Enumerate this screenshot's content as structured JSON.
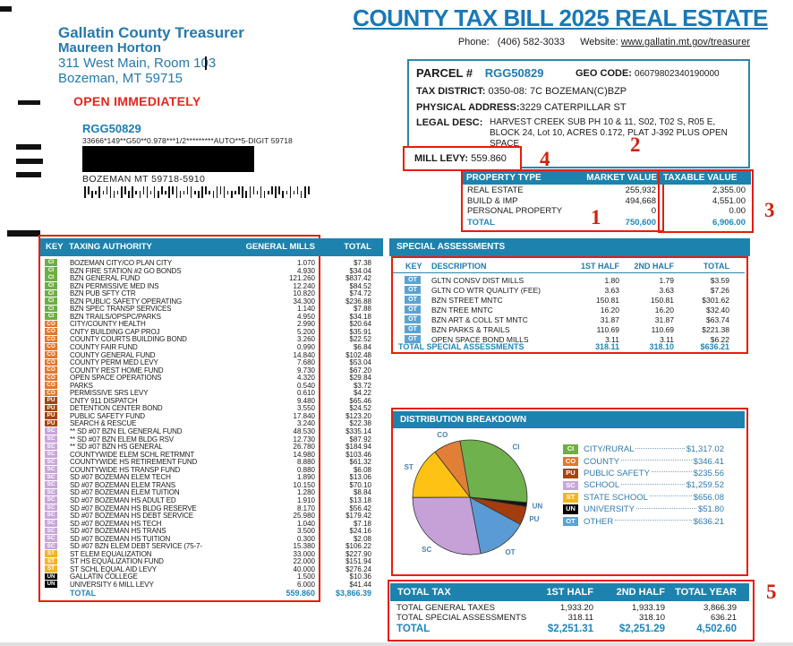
{
  "header": {
    "title": "COUNTY TAX BILL 2025 REAL ESTATE",
    "phone_label": "Phone:",
    "phone": "(406) 582-3033",
    "website_label": "Website:",
    "website": "www.gallatin.mt.gov/treasurer"
  },
  "sender": {
    "office": "Gallatin County Treasurer",
    "name": "Maureen Horton",
    "address1": "311 West Main, Room 103",
    "address2": "Bozeman, MT 59715"
  },
  "mailing": {
    "open_immediately": "OPEN IMMEDIATELY",
    "parcel_ref": "RGG50829",
    "mail_code": "33666*149**G50**0.978***1/2*********AUTO**5-DIGIT 59718",
    "city_line": "BOZEMAN MT 59718-5910"
  },
  "parcel": {
    "parcel_label": "PARCEL #",
    "parcel_id": "RGG50829",
    "geo_code_label": "GEO CODE:",
    "geo_code": "06079802340190000",
    "tax_district_label": "TAX DISTRICT:",
    "tax_district": "0350-08: 7C BOZEMAN(C)BZP",
    "physical_address_label": "PHYSICAL ADDRESS:",
    "physical_address": "3229 CATERPILLAR ST",
    "legal_desc_label": "LEGAL DESC:",
    "legal_desc": "HARVEST CREEK SUB PH 10 & 11, S02, T02 S, R05 E, BLOCK 24, Lot 10, ACRES 0.172, PLAT J-392 PLUS OPEN SPACE",
    "mill_levy_label": "MILL LEVY:",
    "mill_levy": "559.860"
  },
  "annotations": {
    "one": "1",
    "two": "2",
    "three": "3",
    "four": "4",
    "five": "5"
  },
  "key_colors": {
    "CI": "#6fae43",
    "CO": "#e4772a",
    "PU": "#a64510",
    "SC": "#c9a6db",
    "ST": "#f6b51c",
    "UN": "#000000",
    "OT": "#5ba3d4"
  },
  "property_values": {
    "headers": [
      "PROPERTY TYPE",
      "MARKET VALUE",
      "TAXABLE VALUE"
    ],
    "rows": [
      {
        "type": "REAL ESTATE",
        "market": "255,932",
        "taxable": "2,355.00"
      },
      {
        "type": "BUILD & IMP",
        "market": "494,668",
        "taxable": "4,551.00"
      },
      {
        "type": "PERSONAL PROPERTY",
        "market": "0",
        "taxable": "0.00"
      }
    ],
    "total_label": "TOTAL",
    "total_market": "750,600",
    "total_taxable": "6,906.00"
  },
  "taxing_authority": {
    "col_key": "KEY",
    "col_authority": "TAXING AUTHORITY",
    "col_mills": "GENERAL MILLS",
    "col_total": "TOTAL",
    "rows": [
      {
        "key": "CI",
        "name": "BOZEMAN CITY/CO PLAN CITY",
        "mills": "1.070",
        "total": "$7.38"
      },
      {
        "key": "CI",
        "name": "BZN FIRE STATION #2 GO BONDS",
        "mills": "4.930",
        "total": "$34.04"
      },
      {
        "key": "CI",
        "name": "BZN GENERAL FUND",
        "mills": "121.260",
        "total": "$837.42"
      },
      {
        "key": "CI",
        "name": "BZN PERMISSIVE MED INS",
        "mills": "12.240",
        "total": "$84.52"
      },
      {
        "key": "CI",
        "name": "BZN PUB SFTY CTR",
        "mills": "10.820",
        "total": "$74.72"
      },
      {
        "key": "CI",
        "name": "BZN PUBLIC SAFETY OPERATING",
        "mills": "34.300",
        "total": "$236.88"
      },
      {
        "key": "CI",
        "name": "BZN SPEC TRANSP SERVICES",
        "mills": "1.140",
        "total": "$7.88"
      },
      {
        "key": "CI",
        "name": "BZN TRAILS/OPSPC/PARKS",
        "mills": "4.950",
        "total": "$34.18"
      },
      {
        "key": "CO",
        "name": "CITY/COUNTY HEALTH",
        "mills": "2.990",
        "total": "$20.64"
      },
      {
        "key": "CO",
        "name": "CNTY BUILDING CAP PROJ",
        "mills": "5.200",
        "total": "$35.91"
      },
      {
        "key": "CO",
        "name": "COUNTY COURTS BUILDING BOND",
        "mills": "3.260",
        "total": "$22.52"
      },
      {
        "key": "CO",
        "name": "COUNTY FAIR FUND",
        "mills": "0.990",
        "total": "$6.84"
      },
      {
        "key": "CO",
        "name": "COUNTY GENERAL FUND",
        "mills": "14.840",
        "total": "$102.48"
      },
      {
        "key": "CO",
        "name": "COUNTY PERM MED LEVY",
        "mills": "7.680",
        "total": "$53.04"
      },
      {
        "key": "CO",
        "name": "COUNTY REST HOME FUND",
        "mills": "9.730",
        "total": "$67.20"
      },
      {
        "key": "CO",
        "name": "OPEN SPACE OPERATIONS",
        "mills": "4.320",
        "total": "$29.84"
      },
      {
        "key": "CO",
        "name": "PARKS",
        "mills": "0.540",
        "total": "$3.72"
      },
      {
        "key": "CO",
        "name": "PERMISSIVE SRS LEVY",
        "mills": "0.610",
        "total": "$4.22"
      },
      {
        "key": "PU",
        "name": "CNTY 911 DISPATCH",
        "mills": "9.480",
        "total": "$65.46"
      },
      {
        "key": "PU",
        "name": "DETENTION CENTER BOND",
        "mills": "3.550",
        "total": "$24.52"
      },
      {
        "key": "PU",
        "name": "PUBLIC SAFETY FUND",
        "mills": "17.840",
        "total": "$123.20"
      },
      {
        "key": "PU",
        "name": "SEARCH & RESCUE",
        "mills": "3.240",
        "total": "$22.38"
      },
      {
        "key": "SC",
        "name": "** SD #07 BZN EL GENERAL FUND",
        "mills": "48.530",
        "total": "$335.14"
      },
      {
        "key": "SC",
        "name": "** SD #07 BZN ELEM BLDG RSV",
        "mills": "12.730",
        "total": "$87.92"
      },
      {
        "key": "SC",
        "name": "** SD #07 BZN HS GENERAL",
        "mills": "26.780",
        "total": "$184.94"
      },
      {
        "key": "SC",
        "name": "COUNTYWIDE ELEM SCHL RETRMNT",
        "mills": "14.980",
        "total": "$103.46"
      },
      {
        "key": "SC",
        "name": "COUNTYWIDE HS RETIREMENT FUND",
        "mills": "8.880",
        "total": "$61.32"
      },
      {
        "key": "SC",
        "name": "COUNTYWIDE HS TRANSP FUND",
        "mills": "0.880",
        "total": "$6.08"
      },
      {
        "key": "SC",
        "name": "SD #07 BOZEMAN ELEM TECH",
        "mills": "1.890",
        "total": "$13.06"
      },
      {
        "key": "SC",
        "name": "SD #07 BOZEMAN ELEM TRANS",
        "mills": "10.150",
        "total": "$70.10"
      },
      {
        "key": "SC",
        "name": "SD #07 BOZEMAN ELEM TUITION",
        "mills": "1.280",
        "total": "$8.84"
      },
      {
        "key": "SC",
        "name": "SD #07 BOZEMAN HS ADULT ED",
        "mills": "1.910",
        "total": "$13.18"
      },
      {
        "key": "SC",
        "name": "SD #07 BOZEMAN HS BLDG RESERVE",
        "mills": "8.170",
        "total": "$56.42"
      },
      {
        "key": "SC",
        "name": "SD #07 BOZEMAN HS DEBT SERVICE",
        "mills": "25.980",
        "total": "$179.42"
      },
      {
        "key": "SC",
        "name": "SD #07 BOZEMAN HS TECH",
        "mills": "1.040",
        "total": "$7.18"
      },
      {
        "key": "SC",
        "name": "SD #07 BOZEMAN HS TRANS",
        "mills": "3.500",
        "total": "$24.16"
      },
      {
        "key": "SC",
        "name": "SD #07 BOZEMAN HS TUITION",
        "mills": "0.300",
        "total": "$2.08"
      },
      {
        "key": "SC",
        "name": "SD #07 BZN ELEM DEBT SERVICE (75-7-",
        "mills": "15.380",
        "total": "$106.22"
      },
      {
        "key": "ST",
        "name": "ST ELEM EQUALIZATION",
        "mills": "33.000",
        "total": "$227.90"
      },
      {
        "key": "ST",
        "name": "ST HS EQUALIZATION FUND",
        "mills": "22.000",
        "total": "$151.94"
      },
      {
        "key": "ST",
        "name": "ST SCHL EQUAL AID LEVY",
        "mills": "40.000",
        "total": "$276.24"
      },
      {
        "key": "UN",
        "name": "GALLATIN COLLEGE",
        "mills": "1.500",
        "total": "$10.36"
      },
      {
        "key": "UN",
        "name": "UNIVERSITY 6 MILL LEVY",
        "mills": "6.000",
        "total": "$41.44"
      }
    ],
    "total_label": "TOTAL",
    "total_mills": "559.860",
    "total_amount": "$3,866.39"
  },
  "special_assessments": {
    "title": "SPECIAL ASSESSMENTS",
    "col_key": "KEY",
    "col_desc": "DESCRIPTION",
    "col_first": "1ST HALF",
    "col_second": "2ND HALF",
    "col_total": "TOTAL",
    "rows": [
      {
        "key": "OT",
        "desc": "GLTN CONSV DIST MILLS",
        "first": "1.80",
        "second": "1.79",
        "total": "$3.59"
      },
      {
        "key": "OT",
        "desc": "GLTN CO WTR QUALITY (FEE)",
        "first": "3.63",
        "second": "3.63",
        "total": "$7.26"
      },
      {
        "key": "OT",
        "desc": "BZN STREET MNTC",
        "first": "150.81",
        "second": "150.81",
        "total": "$301.62"
      },
      {
        "key": "OT",
        "desc": "BZN TREE MNTC",
        "first": "16.20",
        "second": "16.20",
        "total": "$32.40"
      },
      {
        "key": "OT",
        "desc": "BZN ART & COLL ST MNTC",
        "first": "31.87",
        "second": "31.87",
        "total": "$63.74"
      },
      {
        "key": "OT",
        "desc": "BZN PARKS & TRAILS",
        "first": "110.69",
        "second": "110.69",
        "total": "$221.38"
      },
      {
        "key": "OT",
        "desc": "OPEN SPACE BOND MILLS",
        "first": "3.11",
        "second": "3.11",
        "total": "$6.22"
      }
    ],
    "total_label": "TOTAL SPECIAL ASSESSMENTS",
    "total_first": "318.11",
    "total_second": "318.10",
    "total_amount": "$636.21"
  },
  "distribution": {
    "title": "DISTRIBUTION BREAKDOWN",
    "legend": [
      {
        "key": "CI",
        "label": "CITY/RURAL",
        "value": "$1,317.02"
      },
      {
        "key": "CO",
        "label": "COUNTY",
        "value": "$346.41"
      },
      {
        "key": "PU",
        "label": "PUBLIC SAFETY",
        "value": "$235.56"
      },
      {
        "key": "SC",
        "label": "SCHOOL",
        "value": "$1,259.52"
      },
      {
        "key": "ST",
        "label": "STATE SCHOOL",
        "value": "$656.08"
      },
      {
        "key": "UN",
        "label": "UNIVERSITY",
        "value": "$51.80"
      },
      {
        "key": "OT",
        "label": "OTHER",
        "value": "$636.21"
      }
    ]
  },
  "total_tax": {
    "title": "TOTAL TAX",
    "col_first": "1ST HALF",
    "col_second": "2ND HALF",
    "col_year": "TOTAL YEAR",
    "rows": [
      {
        "label": "TOTAL GENERAL TAXES",
        "first": "1,933.20",
        "second": "1,933.19",
        "year": "3,866.39"
      },
      {
        "label": "TOTAL SPECIAL ASSESSMENTS",
        "first": "318.11",
        "second": "318.10",
        "year": "636.21"
      }
    ],
    "total_label": "TOTAL",
    "total_first": "$2,251.31",
    "total_second": "$2,251.29",
    "total_year": "4,502.60"
  },
  "chart_data": {
    "type": "pie",
    "title": "DISTRIBUTION BREAKDOWN",
    "total": 4502.6,
    "start_angle_deg": -10,
    "draw_order": [
      "CI",
      "UN",
      "PU",
      "OT",
      "SC",
      "ST",
      "CO"
    ],
    "legend_position": "right",
    "slices": [
      {
        "key": "CI",
        "label": "CITY/RURAL",
        "value": 1317.02,
        "color": "#6fb14c"
      },
      {
        "key": "CO",
        "label": "COUNTY",
        "value": 346.41,
        "color": "#e07f35"
      },
      {
        "key": "PU",
        "label": "PUBLIC SAFETY",
        "value": 235.56,
        "color": "#a33d0f"
      },
      {
        "key": "SC",
        "label": "SCHOOL",
        "value": 1259.52,
        "color": "#c5a1d8"
      },
      {
        "key": "ST",
        "label": "STATE SCHOOL",
        "value": 656.08,
        "color": "#fdc214"
      },
      {
        "key": "UN",
        "label": "UNIVERSITY",
        "value": 51.8,
        "color": "#141414"
      },
      {
        "key": "OT",
        "label": "OTHER",
        "value": 636.21,
        "color": "#5b9bd5"
      }
    ]
  }
}
